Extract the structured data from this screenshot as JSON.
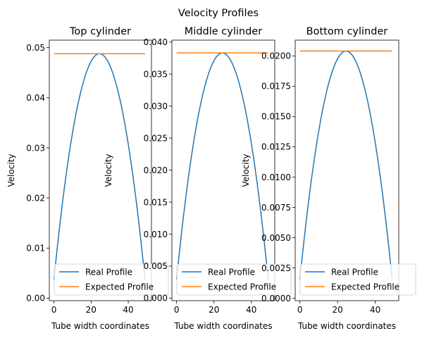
{
  "figure": {
    "suptitle": "Velocity Profiles"
  },
  "colors": {
    "real": "#1f77b4",
    "expected": "#ff7f0e"
  },
  "chart_data": [
    {
      "type": "line",
      "title": "Top cylinder",
      "xlabel": "Tube width coordinates",
      "ylabel": "Velocity",
      "xlim": [
        -2.5,
        52.5
      ],
      "ylim": [
        -0.0005,
        0.0515
      ],
      "xticks": [
        0,
        20,
        40
      ],
      "xtick_labels": [
        "0",
        "20",
        "40"
      ],
      "yticks": [
        0,
        0.01,
        0.02,
        0.03,
        0.04,
        0.05
      ],
      "ytick_labels": [
        "0.00",
        "0.01",
        "0.02",
        "0.03",
        "0.04",
        "0.05"
      ],
      "legend": {
        "loc": "lower-right",
        "entries": [
          "Real Profile",
          "Expected Profile"
        ]
      },
      "series": [
        {
          "name": "Real Profile",
          "shape": "parabola",
          "x_range": [
            0,
            49
          ],
          "peak_x": 24.5,
          "peak_y": 0.0488,
          "edge_y": 0.0023
        },
        {
          "name": "Expected Profile",
          "shape": "constant",
          "x_range": [
            0,
            49
          ],
          "y": 0.0488
        }
      ]
    },
    {
      "type": "line",
      "title": "Middle cylinder",
      "xlabel": "Tube width coordinates",
      "ylabel": "Velocity",
      "xlim": [
        -2.5,
        52.5
      ],
      "ylim": [
        -0.0004,
        0.0403
      ],
      "xticks": [
        0,
        20,
        40
      ],
      "xtick_labels": [
        "0",
        "20",
        "40"
      ],
      "yticks": [
        0,
        0.005,
        0.01,
        0.015,
        0.02,
        0.025,
        0.03,
        0.035,
        0.04
      ],
      "ytick_labels": [
        "0.000",
        "0.005",
        "0.010",
        "0.015",
        "0.020",
        "0.025",
        "0.030",
        "0.035",
        "0.040"
      ],
      "legend": {
        "loc": "lower-right",
        "entries": [
          "Real Profile",
          "Expected Profile"
        ]
      },
      "series": [
        {
          "name": "Real Profile",
          "shape": "parabola",
          "x_range": [
            0,
            49
          ],
          "peak_x": 24.5,
          "peak_y": 0.0383,
          "edge_y": 0.0018
        },
        {
          "name": "Expected Profile",
          "shape": "constant",
          "x_range": [
            0,
            49
          ],
          "y": 0.0383
        }
      ]
    },
    {
      "type": "line",
      "title": "Bottom cylinder",
      "xlabel": "Tube width coordinates",
      "ylabel": "Velocity",
      "xlim": [
        -2.5,
        52.5
      ],
      "ylim": [
        -0.0002,
        0.0213
      ],
      "xticks": [
        0,
        20,
        40
      ],
      "xtick_labels": [
        "0",
        "20",
        "40"
      ],
      "yticks": [
        0,
        0.0025,
        0.005,
        0.0075,
        0.01,
        0.0125,
        0.015,
        0.0175,
        0.02
      ],
      "ytick_labels": [
        "0.0000",
        "0.0025",
        "0.0050",
        "0.0075",
        "0.0100",
        "0.0125",
        "0.0150",
        "0.0175",
        "0.0200"
      ],
      "legend": {
        "loc": "lower-right",
        "entries": [
          "Real Profile",
          "Expected Profile"
        ]
      },
      "series": [
        {
          "name": "Real Profile",
          "shape": "parabola",
          "x_range": [
            0,
            49
          ],
          "peak_x": 24.5,
          "peak_y": 0.0204,
          "edge_y": 0.0009
        },
        {
          "name": "Expected Profile",
          "shape": "constant",
          "x_range": [
            0,
            49
          ],
          "y": 0.0204
        }
      ]
    }
  ]
}
